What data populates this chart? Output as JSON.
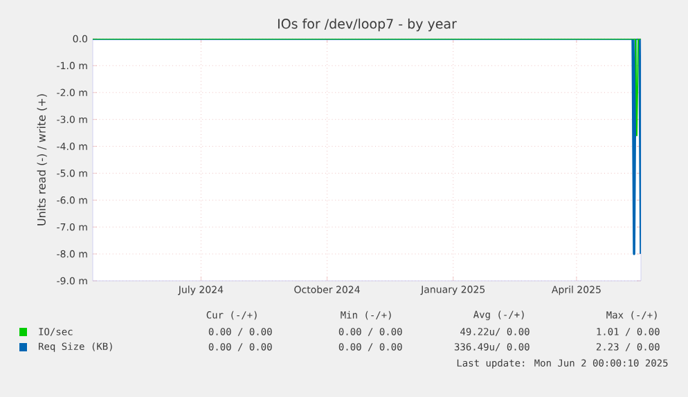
{
  "chart_data": {
    "type": "line",
    "title": "IOs for /dev/loop7 - by year",
    "ylabel": "Units read (-) / write (+)",
    "series": [
      {
        "name": "IO/sec",
        "color": "#00cc00",
        "x": [
          "2024-04-28",
          "2025-05-29",
          "2025-05-30",
          "2025-05-31",
          "2025-06-02"
        ],
        "values": [
          0,
          0,
          -3.6,
          0,
          0
        ]
      },
      {
        "name": "Req Size (KB)",
        "color": "#0066b3",
        "x": [
          "2024-04-28",
          "2025-05-27",
          "2025-05-28",
          "2025-05-29",
          "2025-06-01",
          "2025-06-02"
        ],
        "values": [
          0,
          0,
          -8.0,
          0,
          0,
          -8.0
        ]
      }
    ],
    "xlim": [
      "2024-04-28",
      "2025-06-02"
    ],
    "xticks": [
      {
        "value": "2024-07-16",
        "label": "July 2024"
      },
      {
        "value": "2024-10-16",
        "label": "October 2024"
      },
      {
        "value": "2025-01-16",
        "label": "January 2025"
      },
      {
        "value": "2025-04-16",
        "label": "April 2025"
      }
    ],
    "ylim": [
      -9,
      0
    ],
    "yticks": [
      {
        "value": 0,
        "label": "0.0"
      },
      {
        "value": -1,
        "label": "-1.0 m"
      },
      {
        "value": -2,
        "label": "-2.0 m"
      },
      {
        "value": -3,
        "label": "-3.0 m"
      },
      {
        "value": -4,
        "label": "-4.0 m"
      },
      {
        "value": -5,
        "label": "-5.0 m"
      },
      {
        "value": -6,
        "label": "-6.0 m"
      },
      {
        "value": -7,
        "label": "-7.0 m"
      },
      {
        "value": -8,
        "label": "-8.0 m"
      },
      {
        "value": -9,
        "label": "-9.0 m"
      }
    ],
    "grid": true,
    "legend": "bottom",
    "marker": "none",
    "line_style": "solid",
    "annotations": [
      "Cur (-/+)",
      "Min (-/+)",
      "Avg (-/+)",
      "Max (-/+)",
      "0.00 / 0.00",
      "0.00 / 0.00",
      "49.22u/ 0.00",
      "1.01 / 0.00",
      "0.00 / 0.00",
      "0.00 / 0.00",
      "336.49u/ 0.00",
      "2.23 / 0.00",
      "Last update: Mon Jun  2 00:00:10 2025"
    ]
  }
}
